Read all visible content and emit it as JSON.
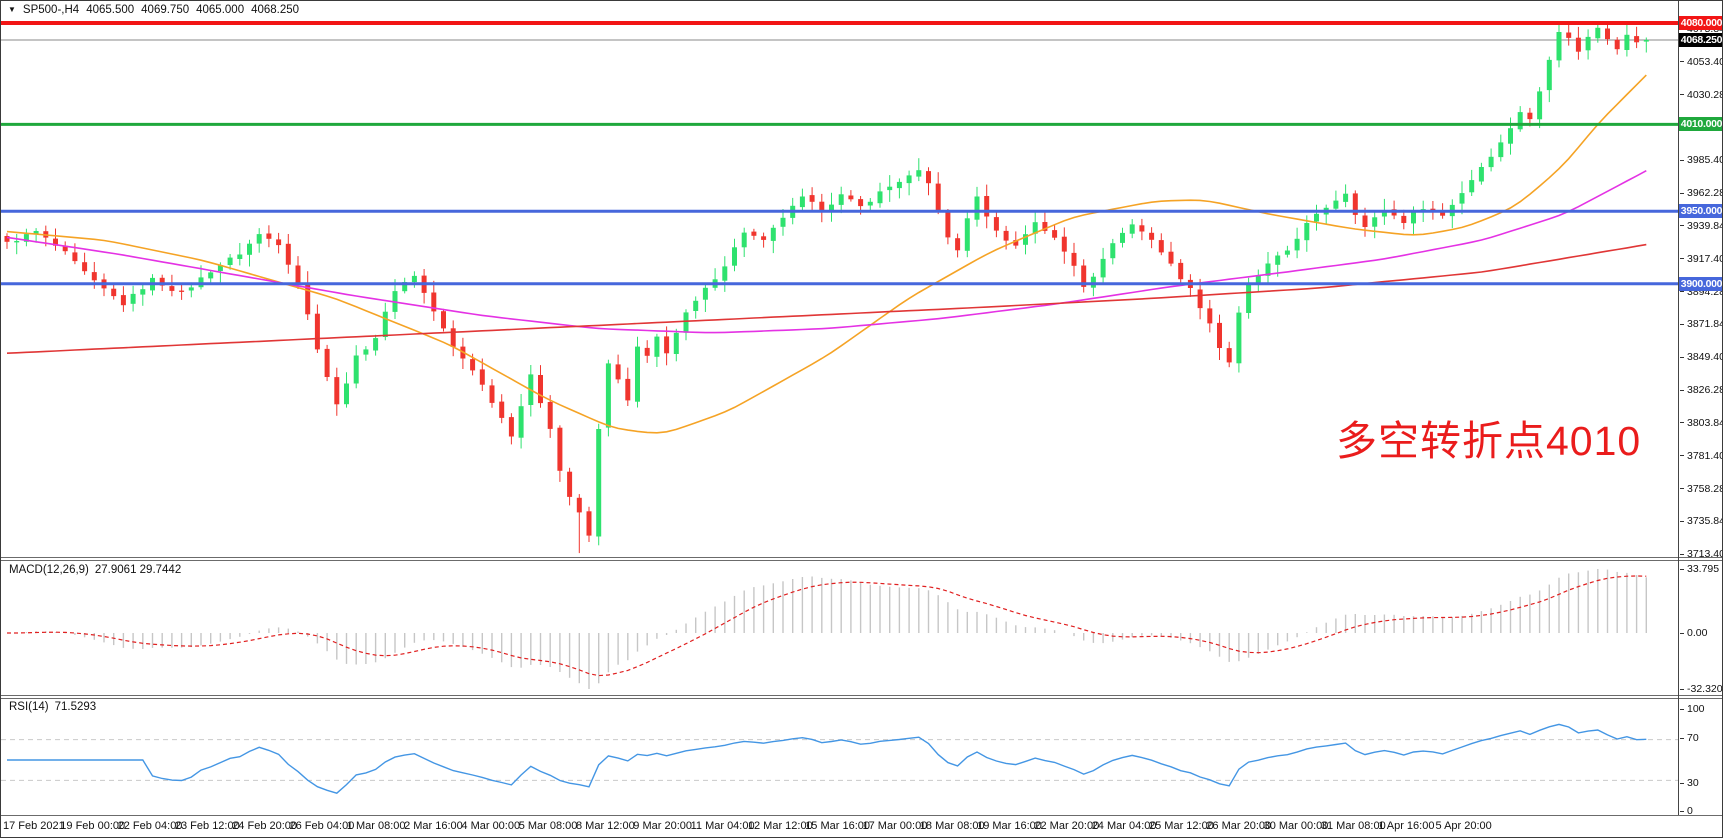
{
  "header": {
    "symbol": "SP500-,H4",
    "open": "4065.500",
    "high": "4069.750",
    "low": "4065.000",
    "close": "4068.250"
  },
  "chart_data": {
    "type": "candlestick",
    "symbol": "SP500-",
    "timeframe": "H4",
    "price_axis": {
      "max": 4075.84,
      "min": 3713.4,
      "ticks": [
        "4075.840",
        "4053.400",
        "4030.280",
        "4007.840",
        "3985.400",
        "3962.280",
        "3939.840",
        "3917.400",
        "3894.280",
        "3871.840",
        "3849.400",
        "3826.280",
        "3803.840",
        "3781.400",
        "3758.280",
        "3735.840",
        "3713.400"
      ]
    },
    "hlines": [
      {
        "price": 4080.0,
        "label": "4080.000",
        "color": "#f21515",
        "width": 4
      },
      {
        "price": 4010.0,
        "label": "4010.000",
        "color": "#1fa83c",
        "width": 3
      },
      {
        "price": 3950.0,
        "label": "3950.000",
        "color": "#4667dc",
        "width": 3
      },
      {
        "price": 3900.0,
        "label": "3900.000",
        "color": "#4667dc",
        "width": 3
      }
    ],
    "current_price": {
      "value": 4068.25,
      "label": "4068.250",
      "line_color": "#8a8a8a",
      "badge_bg": "#000000"
    },
    "candles": {
      "count": 170,
      "bull_color": "#2ee26e",
      "bear_color": "#f0352e",
      "close_anchors": [
        [
          0,
          3928
        ],
        [
          3,
          3936
        ],
        [
          6,
          3921
        ],
        [
          9,
          3901
        ],
        [
          12,
          3886
        ],
        [
          15,
          3903
        ],
        [
          18,
          3893
        ],
        [
          21,
          3909
        ],
        [
          24,
          3921
        ],
        [
          26,
          3934
        ],
        [
          28,
          3928
        ],
        [
          30,
          3901
        ],
        [
          32,
          3856
        ],
        [
          34,
          3816
        ],
        [
          36,
          3849
        ],
        [
          38,
          3863
        ],
        [
          40,
          3896
        ],
        [
          42,
          3906
        ],
        [
          44,
          3881
        ],
        [
          46,
          3856
        ],
        [
          48,
          3841
        ],
        [
          50,
          3819
        ],
        [
          52,
          3796
        ],
        [
          54,
          3836
        ],
        [
          56,
          3801
        ],
        [
          57,
          3771
        ],
        [
          58,
          3753
        ],
        [
          59,
          3741
        ],
        [
          60,
          3726
        ],
        [
          61,
          3799
        ],
        [
          62,
          3846
        ],
        [
          63,
          3833
        ],
        [
          64,
          3819
        ],
        [
          65,
          3856
        ],
        [
          66,
          3849
        ],
        [
          67,
          3863
        ],
        [
          68,
          3853
        ],
        [
          70,
          3879
        ],
        [
          72,
          3896
        ],
        [
          74,
          3913
        ],
        [
          76,
          3936
        ],
        [
          78,
          3929
        ],
        [
          80,
          3946
        ],
        [
          82,
          3959
        ],
        [
          84,
          3951
        ],
        [
          86,
          3961
        ],
        [
          88,
          3953
        ],
        [
          90,
          3963
        ],
        [
          92,
          3971
        ],
        [
          94,
          3977
        ],
        [
          95,
          3969
        ],
        [
          96,
          3951
        ],
        [
          97,
          3931
        ],
        [
          98,
          3923
        ],
        [
          99,
          3946
        ],
        [
          100,
          3959
        ],
        [
          102,
          3936
        ],
        [
          104,
          3926
        ],
        [
          106,
          3943
        ],
        [
          108,
          3931
        ],
        [
          110,
          3913
        ],
        [
          111,
          3899
        ],
        [
          112,
          3906
        ],
        [
          113,
          3916
        ],
        [
          114,
          3929
        ],
        [
          116,
          3941
        ],
        [
          118,
          3931
        ],
        [
          120,
          3913
        ],
        [
          122,
          3896
        ],
        [
          124,
          3873
        ],
        [
          125,
          3856
        ],
        [
          126,
          3846
        ],
        [
          127,
          3879
        ],
        [
          128,
          3899
        ],
        [
          130,
          3913
        ],
        [
          132,
          3923
        ],
        [
          134,
          3941
        ],
        [
          136,
          3953
        ],
        [
          138,
          3963
        ],
        [
          139,
          3949
        ],
        [
          140,
          3939
        ],
        [
          142,
          3951
        ],
        [
          144,
          3943
        ],
        [
          146,
          3953
        ],
        [
          148,
          3947
        ],
        [
          150,
          3963
        ],
        [
          152,
          3981
        ],
        [
          154,
          3997
        ],
        [
          156,
          4019
        ],
        [
          157,
          4013
        ],
        [
          158,
          4033
        ],
        [
          159,
          4056
        ],
        [
          160,
          4075
        ],
        [
          161,
          4069
        ],
        [
          162,
          4061
        ],
        [
          163,
          4070
        ],
        [
          164,
          4077
        ],
        [
          165,
          4070
        ],
        [
          166,
          4063
        ],
        [
          167,
          4073
        ],
        [
          168,
          4066
        ],
        [
          169,
          4068.25
        ]
      ]
    },
    "moving_averages": [
      {
        "name": "ma-fast",
        "color": "#f5a325",
        "anchors": [
          [
            0,
            3936
          ],
          [
            0.06,
            3930
          ],
          [
            0.12,
            3916
          ],
          [
            0.2,
            3890
          ],
          [
            0.27,
            3858
          ],
          [
            0.33,
            3820
          ],
          [
            0.37,
            3800
          ],
          [
            0.4,
            3796
          ],
          [
            0.44,
            3812
          ],
          [
            0.5,
            3850
          ],
          [
            0.55,
            3890
          ],
          [
            0.6,
            3922
          ],
          [
            0.65,
            3946
          ],
          [
            0.7,
            3957
          ],
          [
            0.73,
            3958
          ],
          [
            0.77,
            3948
          ],
          [
            0.82,
            3938
          ],
          [
            0.86,
            3933
          ],
          [
            0.89,
            3939
          ],
          [
            0.92,
            3953
          ],
          [
            0.95,
            3982
          ],
          [
            0.97,
            4010
          ],
          [
            1,
            4044
          ]
        ]
      },
      {
        "name": "ma-mid",
        "color": "#e432e4",
        "anchors": [
          [
            0,
            3932
          ],
          [
            0.07,
            3920
          ],
          [
            0.14,
            3906
          ],
          [
            0.21,
            3892
          ],
          [
            0.29,
            3878
          ],
          [
            0.36,
            3869
          ],
          [
            0.43,
            3866
          ],
          [
            0.5,
            3869
          ],
          [
            0.57,
            3876
          ],
          [
            0.64,
            3886
          ],
          [
            0.71,
            3898
          ],
          [
            0.78,
            3908
          ],
          [
            0.84,
            3917
          ],
          [
            0.9,
            3930
          ],
          [
            0.95,
            3948
          ],
          [
            1,
            3978
          ]
        ]
      },
      {
        "name": "ma-slow",
        "color": "#e03636",
        "anchors": [
          [
            0,
            3852
          ],
          [
            0.15,
            3860
          ],
          [
            0.3,
            3868
          ],
          [
            0.45,
            3876
          ],
          [
            0.6,
            3884
          ],
          [
            0.7,
            3890
          ],
          [
            0.8,
            3897
          ],
          [
            0.9,
            3908
          ],
          [
            1,
            3927
          ]
        ]
      }
    ],
    "macd": {
      "label": "MACD(12,26,9)",
      "values": "27.9061 29.7442",
      "fast": 12,
      "slow": 26,
      "signal": 9,
      "axis_ticks": [
        "33.795",
        "0.00",
        "-32.3207"
      ],
      "histogram_color": "#c6c6c6",
      "signal_color": "#e02020"
    },
    "rsi": {
      "label": "RSI(14)",
      "value": "71.5293",
      "period": 14,
      "axis_ticks": [
        "100",
        "70",
        "30",
        "0"
      ],
      "levels": [
        70,
        30
      ],
      "line_color": "#4496e4"
    },
    "x_axis_labels": [
      "17 Feb 2021",
      "19 Feb 00:00",
      "22 Feb 04:00",
      "23 Feb 12:00",
      "24 Feb 20:00",
      "26 Feb 04:00",
      "1 Mar 08:00",
      "2 Mar 16:00",
      "4 Mar 00:00",
      "5 Mar 08:00",
      "8 Mar 12:00",
      "9 Mar 20:00",
      "11 Mar 04:00",
      "12 Mar 12:00",
      "15 Mar 16:00",
      "17 Mar 00:00",
      "18 Mar 08:00",
      "19 Mar 16:00",
      "22 Mar 20:00",
      "24 Mar 04:00",
      "25 Mar 12:00",
      "26 Mar 20:00",
      "30 Mar 00:00",
      "31 Mar 08:00",
      "1 Apr 16:00",
      "5 Apr 20:00"
    ],
    "annotation": {
      "text": "多空转折点4010",
      "color": "#ea1c1c"
    }
  }
}
